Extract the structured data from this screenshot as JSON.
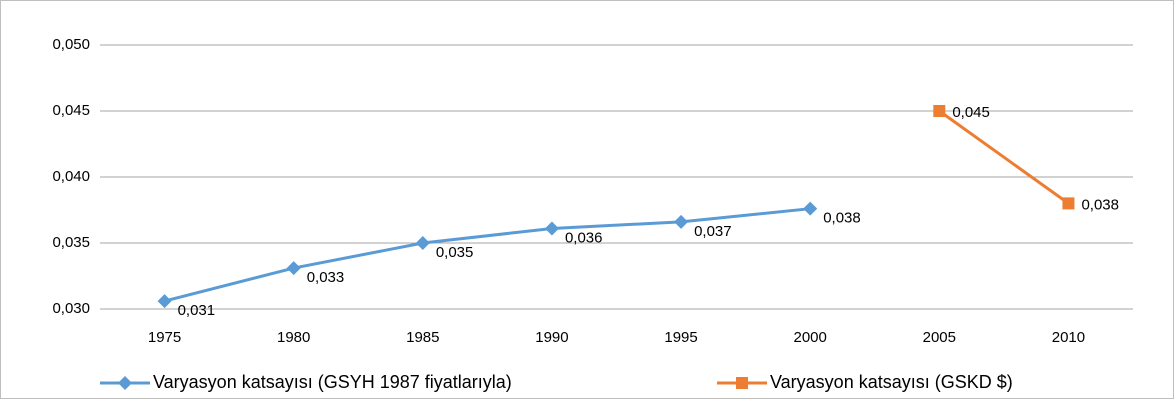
{
  "chart_data": {
    "type": "line",
    "categories": [
      "1975",
      "1980",
      "1985",
      "1990",
      "1995",
      "2000",
      "2005",
      "2010"
    ],
    "series": [
      {
        "name": "Varyasyon katsayısı (GSYH 1987 fiyatlarıyla)",
        "color": "#5b9bd5",
        "marker": "diamond",
        "values": [
          0.0306,
          0.0331,
          0.035,
          0.0361,
          0.0366,
          0.0376,
          null,
          null
        ],
        "value_labels": [
          "0,031",
          "0,033",
          "0,035",
          "0,036",
          "0,037",
          "0,038",
          null,
          null
        ]
      },
      {
        "name": "Varyasyon katsayısı (GSKD $)",
        "color": "#ed7d31",
        "marker": "square",
        "values": [
          null,
          null,
          null,
          null,
          null,
          null,
          0.045,
          0.038
        ],
        "value_labels": [
          null,
          null,
          null,
          null,
          null,
          null,
          "0,045",
          "0,038"
        ]
      }
    ],
    "ylim": [
      0.03,
      0.05
    ],
    "yticks": [
      {
        "value": 0.03,
        "label": "0,030"
      },
      {
        "value": 0.035,
        "label": "0,035"
      },
      {
        "value": 0.04,
        "label": "0,040"
      },
      {
        "value": 0.045,
        "label": "0,045"
      },
      {
        "value": 0.05,
        "label": "0,050"
      }
    ],
    "grid": true
  }
}
